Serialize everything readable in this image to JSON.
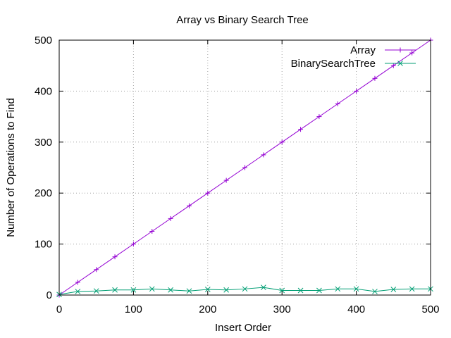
{
  "chart_data": {
    "type": "line",
    "title": "Array vs Binary Search Tree",
    "xlabel": "Insert Order",
    "ylabel": "Number of Operations to Find",
    "xlim": [
      0,
      500
    ],
    "ylim": [
      0,
      500
    ],
    "xticks": [
      0,
      100,
      200,
      300,
      400,
      500
    ],
    "yticks": [
      0,
      100,
      200,
      300,
      400,
      500
    ],
    "grid": true,
    "legend_position": "top-right",
    "x": [
      0,
      25,
      50,
      75,
      100,
      125,
      150,
      175,
      200,
      225,
      250,
      275,
      300,
      325,
      350,
      375,
      400,
      425,
      450,
      475,
      500
    ],
    "series": [
      {
        "name": "Array",
        "color": "#9400d3",
        "marker": "plus",
        "values": [
          0,
          25,
          50,
          75,
          100,
          125,
          150,
          175,
          200,
          225,
          250,
          275,
          300,
          325,
          350,
          375,
          400,
          425,
          450,
          475,
          500
        ]
      },
      {
        "name": "BinarySearchTree",
        "color": "#009e73",
        "marker": "cross",
        "values": [
          1,
          7,
          8,
          10,
          10,
          12,
          10,
          8,
          11,
          10,
          12,
          15,
          9,
          9,
          9,
          12,
          12,
          7,
          11,
          12,
          12
        ]
      }
    ]
  }
}
